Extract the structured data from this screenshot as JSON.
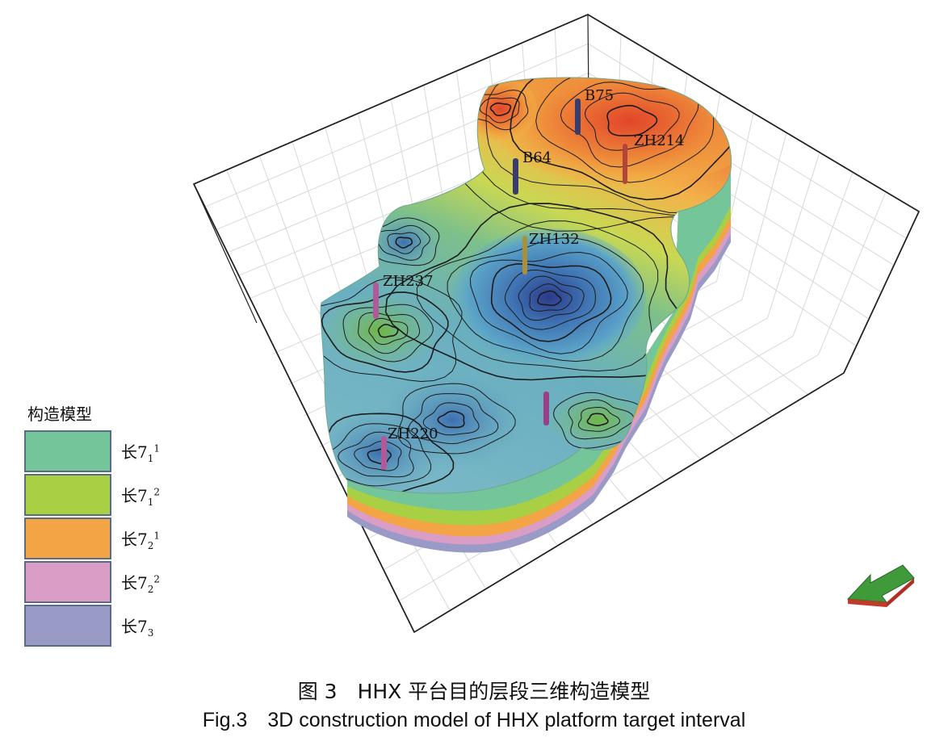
{
  "figure": {
    "wells": [
      {
        "name": "B75",
        "color": "#3a3d6b"
      },
      {
        "name": "B64",
        "color": "#3a3d6b"
      },
      {
        "name": "ZH214",
        "color": "#b2453a"
      },
      {
        "name": "ZH132",
        "color": "#a8913a"
      },
      {
        "name": "ZH237",
        "color": "#b05a9a"
      },
      {
        "name": "ZH220",
        "color": "#b05a9a"
      }
    ],
    "unlabeled_well_color": "#9a3f8a"
  },
  "legend": {
    "title": "构造模型",
    "items": [
      {
        "base": "长7",
        "sub": "1",
        "sup": "1",
        "color": "#74c59a"
      },
      {
        "base": "长7",
        "sub": "1",
        "sup": "2",
        "color": "#a9cf45"
      },
      {
        "base": "长7",
        "sub": "2",
        "sup": "1",
        "color": "#f3a545"
      },
      {
        "base": "长7",
        "sub": "2",
        "sup": "2",
        "color": "#d99dc6"
      },
      {
        "base": "长7",
        "sub": "3",
        "sup": "",
        "color": "#9a9ac6"
      }
    ]
  },
  "caption": {
    "zh": "图 3　HHX 平台目的层段三维构造模型",
    "en": "Fig.3　3D construction model of HHX platform target interval"
  }
}
